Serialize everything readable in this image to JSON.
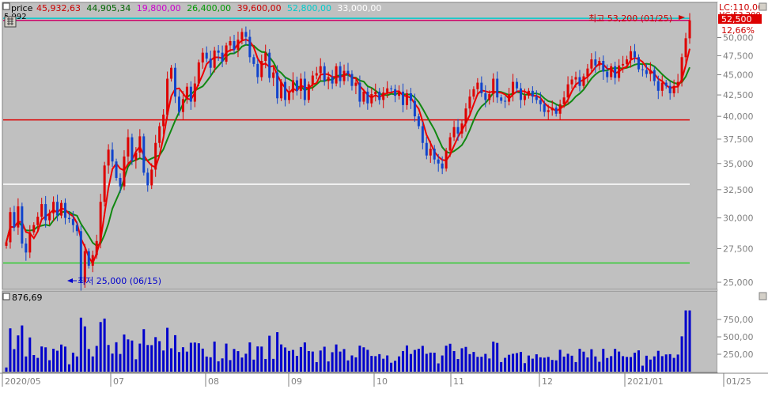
{
  "header": {
    "series_label": "price",
    "values": [
      {
        "text": "45,932,63",
        "color": "#cc0000"
      },
      {
        "text": "44,905,34",
        "color": "#006600"
      },
      {
        "text": "19,800,00",
        "color": "#cc00cc"
      },
      {
        "text": "26,400,00",
        "color": "#009900"
      },
      {
        "text": "39,600,00",
        "color": "#cc0000"
      },
      {
        "text": "52,800,00",
        "color": "#00cccc"
      },
      {
        "text": "33,000,00",
        "color": "#ffffff"
      }
    ],
    "small_label": "5 992"
  },
  "right_info": {
    "lc": "LC:110,00",
    "hc": "HC:53,200",
    "current_price": "52,500",
    "pct": "12,66%"
  },
  "annotations": {
    "high": "최고 53,200 (01/25)",
    "low": "최저 25,000 (06/15)"
  },
  "volume_panel": {
    "label": "876,69"
  },
  "colors": {
    "up": "#dd0000",
    "down": "#1144cc",
    "ma_short": "#ee0000",
    "ma_long": "#118811",
    "volume": "#0000cc",
    "bg": "#c0c0c0"
  },
  "chart_data": {
    "type": "candlestick",
    "price_axis": {
      "ticks": [
        "50,000",
        "47,500",
        "45,000",
        "42,500",
        "40,000",
        "37,500",
        "35,000",
        "32,500",
        "30,000",
        "27,500",
        "25,000"
      ],
      "tick_values": [
        50000,
        47500,
        45000,
        42500,
        40000,
        37500,
        35000,
        32500,
        30000,
        27500,
        25000
      ],
      "log_scale": true
    },
    "volume_axis": {
      "ticks": [
        "750,00",
        "500,00",
        "250,00"
      ],
      "tick_values": [
        750,
        500,
        250
      ],
      "ylim": [
        0,
        1000
      ]
    },
    "x_axis": {
      "labels": [
        "2020/05",
        "07",
        "08",
        "09",
        "10",
        "11",
        "12",
        "2021/01",
        "01/25"
      ]
    },
    "horizontal_lines": [
      {
        "value": 52800,
        "color": "#00cccc"
      },
      {
        "value": 52500,
        "color": "#cc0066"
      },
      {
        "value": 39600,
        "color": "#dd0000"
      },
      {
        "value": 33000,
        "color": "#ffffff"
      },
      {
        "value": 26400,
        "color": "#33cc33"
      }
    ],
    "closes": [
      28000,
      30500,
      29200,
      31000,
      27900,
      27200,
      28800,
      29400,
      30100,
      31200,
      29800,
      30400,
      31400,
      30200,
      31300,
      30000,
      29900,
      29400,
      28900,
      25000,
      27300,
      26200,
      27000,
      28100,
      31400,
      34800,
      36400,
      35200,
      33600,
      32800,
      35700,
      37700,
      35300,
      36100,
      37800,
      34100,
      32900,
      34400,
      37100,
      38900,
      40200,
      44500,
      45900,
      42300,
      40500,
      42000,
      43500,
      41700,
      43900,
      46600,
      47900,
      47100,
      45900,
      48200,
      47900,
      46700,
      48900,
      49500,
      48300,
      49700,
      50800,
      50100,
      47300,
      46400,
      44700,
      46800,
      47900,
      44600,
      45300,
      42100,
      44100,
      41900,
      42800,
      44300,
      43000,
      44500,
      41900,
      43800,
      44900,
      45200,
      46100,
      44200,
      44700,
      43900,
      46100,
      44200,
      45500,
      45100,
      43600,
      44000,
      41700,
      42900,
      41500,
      42600,
      42900,
      41900,
      42800,
      43300,
      43200,
      42400,
      42900,
      41300,
      42700,
      41800,
      40000,
      38900,
      37100,
      35800,
      36500,
      35400,
      35000,
      34500,
      36300,
      37700,
      38800,
      38100,
      39200,
      40900,
      42300,
      43200,
      44000,
      42700,
      41900,
      42600,
      44500,
      42200,
      41800,
      41700,
      42600,
      44100,
      43300,
      41900,
      42400,
      43000,
      42300,
      41900,
      41400,
      40500,
      40700,
      41000,
      40300,
      41400,
      42200,
      43800,
      44400,
      44700,
      43600,
      44800,
      45800,
      47000,
      46200,
      46800,
      45400,
      44700,
      46100,
      44600,
      46200,
      46400,
      47000,
      48100,
      47300,
      45700,
      45600,
      45100,
      45600,
      44200,
      43000,
      44000,
      43600,
      42700,
      43600,
      44100,
      47300,
      49900,
      52500
    ]
  }
}
